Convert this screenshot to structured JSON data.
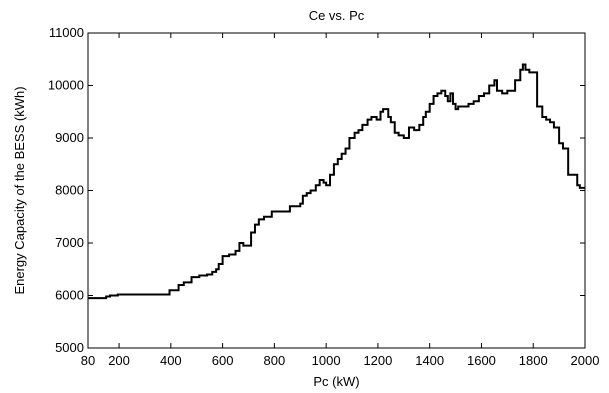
{
  "chart_data": {
    "type": "line",
    "title": "Ce vs. Pc",
    "xlabel": "Pc (kW)",
    "ylabel": "Energy Capacity of the BESS (kWh)",
    "xlim": [
      80,
      2000
    ],
    "ylim": [
      5000,
      11000
    ],
    "x_ticks": [
      "80",
      "200",
      "400",
      "600",
      "800",
      "1000",
      "1200",
      "1400",
      "1600",
      "1800",
      "2000"
    ],
    "y_ticks": [
      "5000",
      "6000",
      "7000",
      "8000",
      "9000",
      "10000",
      "11000"
    ],
    "grid": false,
    "line_style": "step",
    "series": [
      {
        "name": "",
        "color": "#000000",
        "x": [
          80,
          130,
          150,
          165,
          195,
          210,
          240,
          300,
          350,
          380,
          395,
          410,
          430,
          450,
          480,
          510,
          540,
          560,
          575,
          585,
          600,
          625,
          650,
          665,
          680,
          710,
          725,
          740,
          760,
          790,
          820,
          860,
          900,
          910,
          925,
          940,
          960,
          975,
          990,
          1000,
          1015,
          1030,
          1045,
          1060,
          1075,
          1090,
          1110,
          1125,
          1140,
          1160,
          1175,
          1195,
          1210,
          1220,
          1240,
          1250,
          1265,
          1280,
          1300,
          1320,
          1340,
          1360,
          1375,
          1385,
          1400,
          1415,
          1430,
          1445,
          1460,
          1470,
          1480,
          1490,
          1500,
          1510,
          1530,
          1550,
          1570,
          1590,
          1610,
          1630,
          1650,
          1660,
          1680,
          1700,
          1730,
          1750,
          1760,
          1770,
          1785,
          1800,
          1815,
          1835,
          1850,
          1865,
          1880,
          1900,
          1915,
          1935,
          1950,
          1970,
          1980,
          1990,
          2000
        ],
        "y": [
          5950,
          5950,
          5980,
          6000,
          6020,
          6020,
          6020,
          6020,
          6020,
          6020,
          6100,
          6100,
          6200,
          6250,
          6350,
          6380,
          6400,
          6450,
          6500,
          6600,
          6750,
          6780,
          6850,
          7000,
          6950,
          7200,
          7350,
          7450,
          7500,
          7600,
          7600,
          7700,
          7750,
          7900,
          7950,
          8000,
          8100,
          8200,
          8150,
          8100,
          8300,
          8500,
          8600,
          8700,
          8800,
          9000,
          9100,
          9150,
          9250,
          9350,
          9400,
          9350,
          9500,
          9550,
          9400,
          9300,
          9100,
          9050,
          9000,
          9200,
          9150,
          9250,
          9400,
          9500,
          9650,
          9800,
          9850,
          9900,
          9800,
          9700,
          9850,
          9650,
          9550,
          9600,
          9600,
          9650,
          9700,
          9800,
          9850,
          10000,
          10100,
          9900,
          9850,
          9900,
          10100,
          10300,
          10400,
          10300,
          10250,
          10250,
          9600,
          9400,
          9350,
          9300,
          9200,
          8900,
          8800,
          8300,
          8300,
          8100,
          8050,
          8050,
          8050
        ]
      }
    ]
  }
}
